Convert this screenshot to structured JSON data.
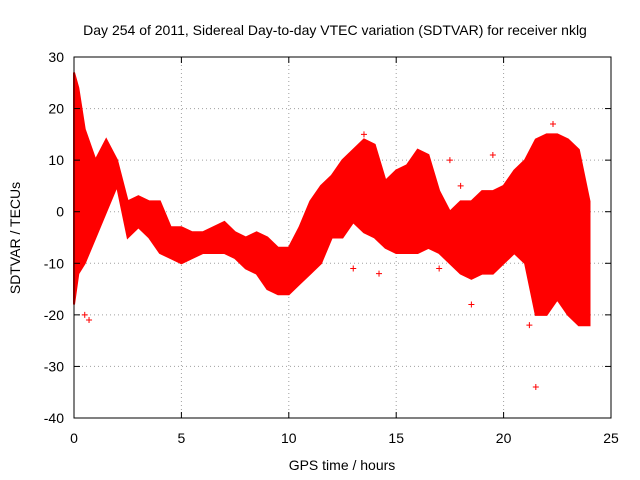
{
  "chart_data": {
    "type": "scatter",
    "title": "Day 254 of 2011, Sidereal Day-to-day VTEC variation (SDTVAR) for receiver nklg",
    "xlabel": "GPS time / hours",
    "ylabel": "SDTVAR / TECUs",
    "xlim": [
      0,
      25
    ],
    "ylim": [
      -40,
      30
    ],
    "xticks": [
      0,
      5,
      10,
      15,
      20,
      25
    ],
    "yticks": [
      -40,
      -30,
      -20,
      -10,
      0,
      10,
      20,
      30
    ],
    "grid": true,
    "marker": "+",
    "colors": {
      "series": "#ff0000",
      "axis": "#000000",
      "grid": "#a0a0a0"
    },
    "series": [
      {
        "name": "SDTVAR",
        "band": {
          "x": [
            0.0,
            0.2,
            0.5,
            1.0,
            1.5,
            2.0,
            2.5,
            3.0,
            3.5,
            4.0,
            4.5,
            5.0,
            5.5,
            6.0,
            6.5,
            7.0,
            7.5,
            8.0,
            8.5,
            9.0,
            9.5,
            10.0,
            10.5,
            11.0,
            11.5,
            12.0,
            12.5,
            13.0,
            13.5,
            14.0,
            14.5,
            15.0,
            15.5,
            16.0,
            16.5,
            17.0,
            17.5,
            18.0,
            18.5,
            19.0,
            19.5,
            20.0,
            20.5,
            21.0,
            21.5,
            22.0,
            22.5,
            23.0,
            23.5,
            24.0
          ],
          "low": [
            -18,
            -12,
            -10,
            -5,
            0,
            5,
            -5,
            -3,
            -5,
            -8,
            -9,
            -10,
            -9,
            -8,
            -8,
            -8,
            -9,
            -11,
            -12,
            -15,
            -16,
            -16,
            -14,
            -12,
            -10,
            -5,
            -5,
            -2,
            -4,
            -5,
            -7,
            -8,
            -8,
            -8,
            -7,
            -8,
            -10,
            -12,
            -13,
            -12,
            -12,
            -10,
            -8,
            -10,
            -20,
            -20,
            -17,
            -20,
            -22,
            -22
          ],
          "high": [
            27,
            24,
            16,
            10,
            14,
            10,
            2,
            3,
            2,
            2,
            -3,
            -3,
            -4,
            -4,
            -3,
            -2,
            -4,
            -5,
            -4,
            -5,
            -7,
            -7,
            -3,
            2,
            5,
            7,
            10,
            12,
            14,
            13,
            6,
            8,
            9,
            12,
            11,
            4,
            0,
            2,
            2,
            4,
            4,
            5,
            8,
            10,
            14,
            15,
            15,
            14,
            12,
            2
          ]
        },
        "outliers": [
          {
            "x": 0.5,
            "y": -20
          },
          {
            "x": 0.7,
            "y": -21
          },
          {
            "x": 2.9,
            "y": -3
          },
          {
            "x": 13.5,
            "y": 15
          },
          {
            "x": 13.0,
            "y": -11
          },
          {
            "x": 14.2,
            "y": -12
          },
          {
            "x": 17.0,
            "y": -11
          },
          {
            "x": 17.5,
            "y": 10
          },
          {
            "x": 18.0,
            "y": 5
          },
          {
            "x": 18.5,
            "y": -18
          },
          {
            "x": 19.5,
            "y": 11
          },
          {
            "x": 21.5,
            "y": -34
          },
          {
            "x": 21.2,
            "y": -22
          },
          {
            "x": 22.3,
            "y": 17
          },
          {
            "x": 22.8,
            "y": -16
          },
          {
            "x": 23.6,
            "y": 8
          }
        ]
      }
    ]
  }
}
